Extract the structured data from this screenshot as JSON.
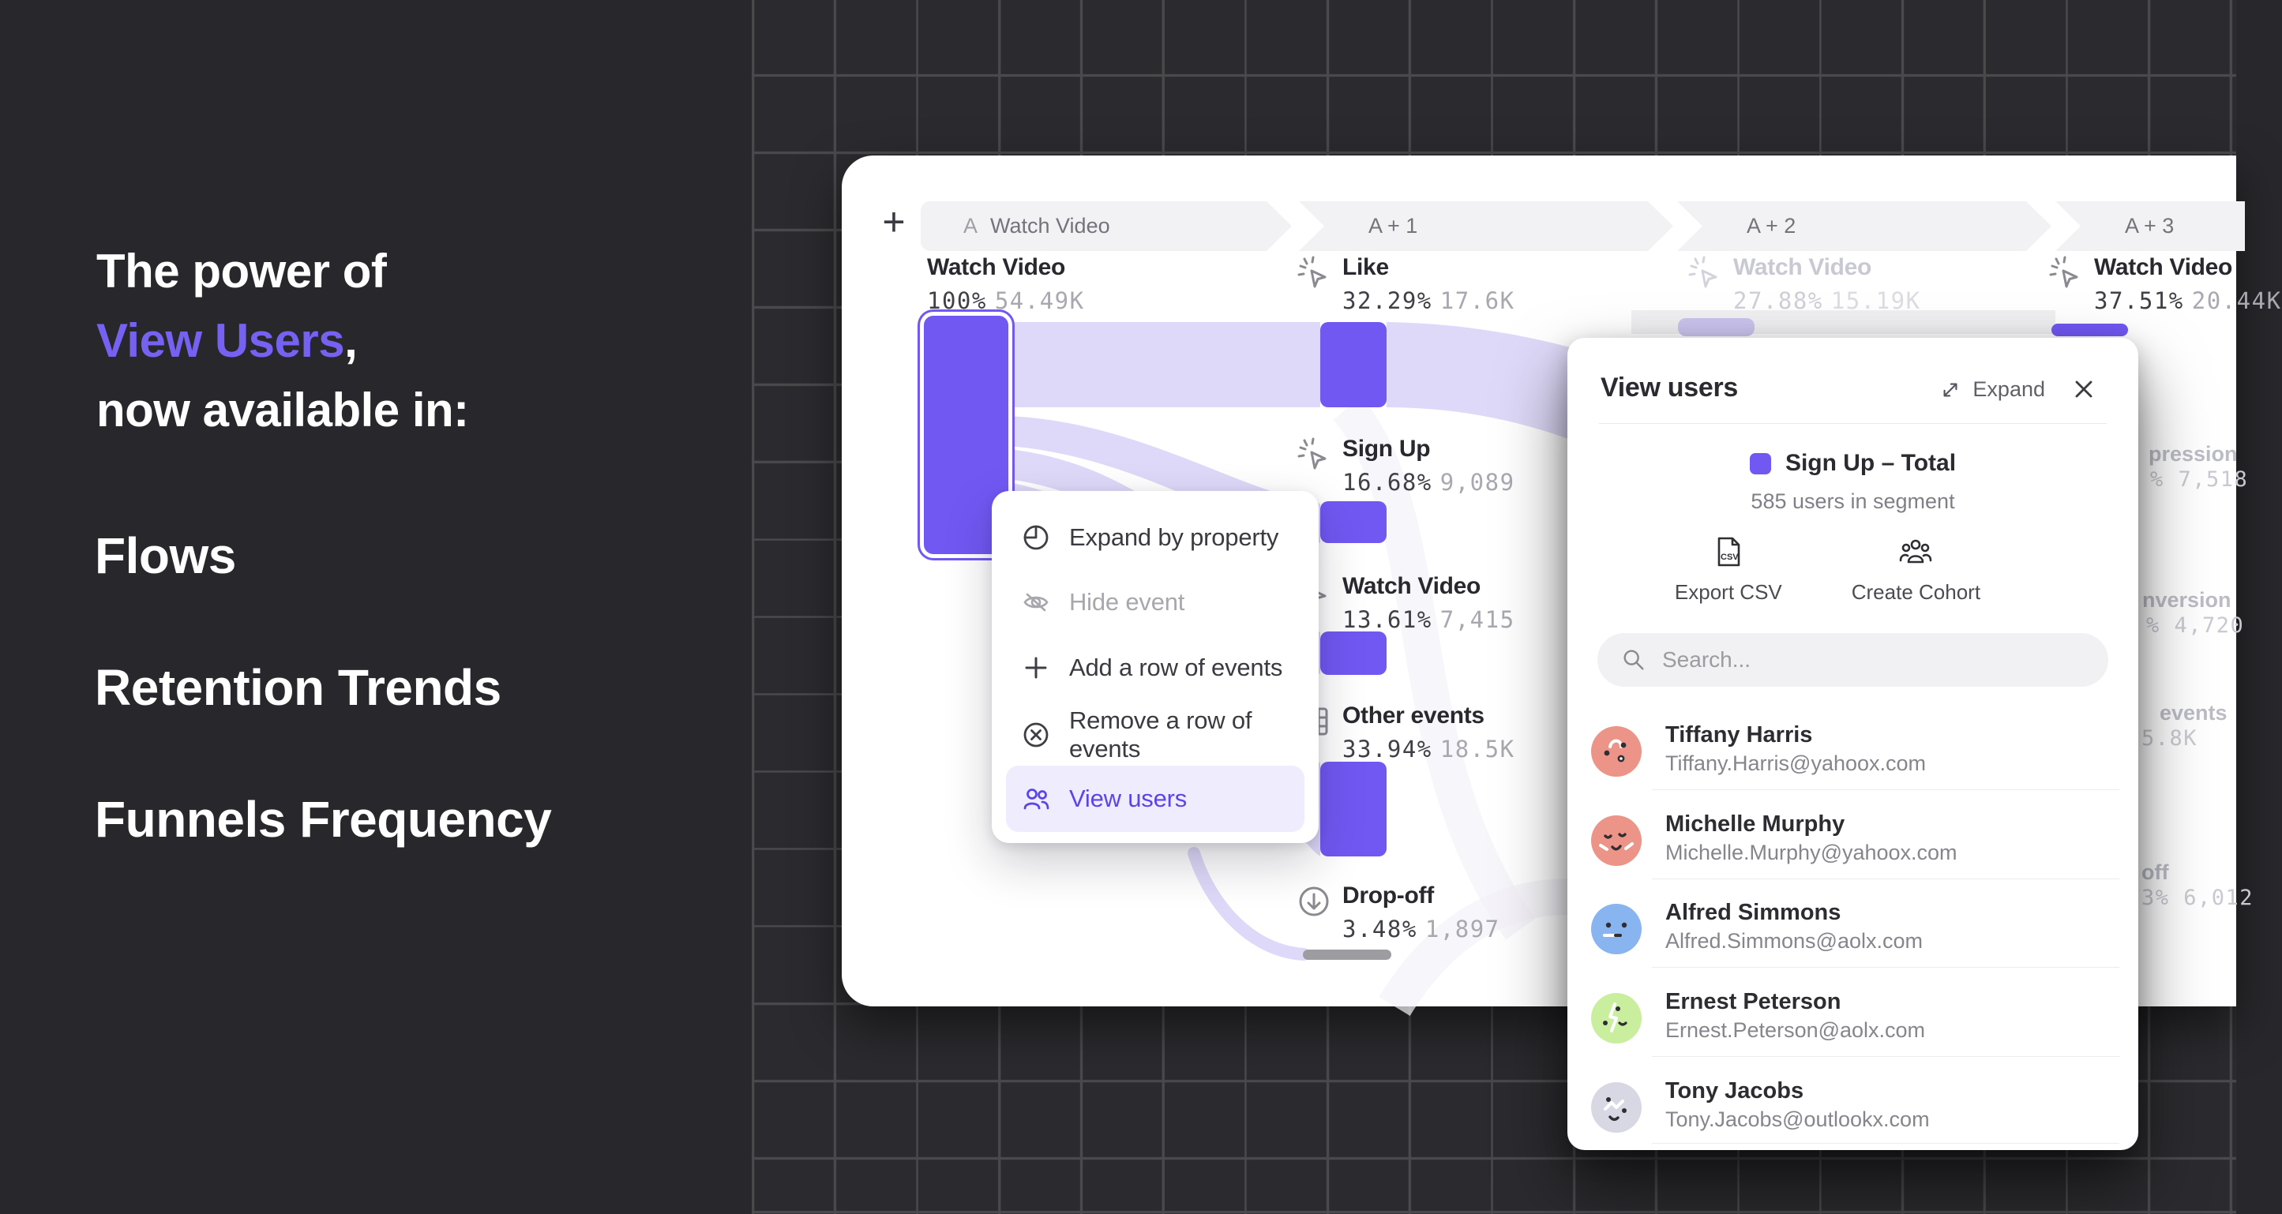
{
  "colors": {
    "bg": "#28282C",
    "grid_line": "#4A4A4D",
    "accent": "#7158F3",
    "accent_text": "#5B45EA",
    "ribbon": "#DED9F8",
    "faded_bar": "#CBC4EE",
    "muted_count": "#A8A8B0"
  },
  "hero": {
    "line1": "The power of",
    "line2": "View Users",
    "line2_comma": ",",
    "line3": "now available in:",
    "items": [
      "Flows",
      "Retention Trends",
      "Funnels Frequency"
    ]
  },
  "toolbar": {
    "add_step_label": "+"
  },
  "pills": [
    {
      "prefix": "A",
      "label": "Watch Video"
    },
    {
      "label": "A + 1"
    },
    {
      "label": "A + 2"
    },
    {
      "label": "A + 3"
    }
  ],
  "chart_data": {
    "type": "sankey-funnel",
    "columns": [
      "A Watch Video",
      "A + 1",
      "A + 2",
      "A + 3"
    ],
    "events": [
      {
        "column": 0,
        "name": "Watch Video",
        "pct": "100%",
        "count": "54.49K"
      },
      {
        "column": 1,
        "name": "Like",
        "pct": "32.29%",
        "count": "17.6K"
      },
      {
        "column": 1,
        "name": "Sign Up",
        "pct": "16.68%",
        "count": "9,089"
      },
      {
        "column": 1,
        "name": "Watch Video",
        "pct": "13.61%",
        "count": "7,415"
      },
      {
        "column": 1,
        "name": "Other events",
        "pct": "33.94%",
        "count": "18.5K"
      },
      {
        "column": 1,
        "name": "Drop-off",
        "pct": "3.48%",
        "count": "1,897"
      },
      {
        "column": 2,
        "name": "Watch Video",
        "pct": "27.88%",
        "count": "15.19K",
        "faded": true
      },
      {
        "column": 3,
        "name": "Watch Video",
        "pct": "37.51%",
        "count": "20.44K"
      }
    ],
    "cutoff_fragments": [
      {
        "text": "pression",
        "kind": "label"
      },
      {
        "text": "% 7,518",
        "kind": "value"
      },
      {
        "text": "nversion",
        "kind": "label"
      },
      {
        "text": "% 4,720",
        "kind": "value"
      },
      {
        "text": "events",
        "kind": "label"
      },
      {
        "text": "5.8K",
        "kind": "value"
      },
      {
        "text": "off",
        "kind": "label"
      },
      {
        "text": "3% 6,012",
        "kind": "value"
      }
    ]
  },
  "context_menu": {
    "items": [
      {
        "label": "Expand by property",
        "icon": "expand-by-property-icon",
        "state": "default"
      },
      {
        "label": "Hide event",
        "icon": "hide-event-icon",
        "state": "disabled"
      },
      {
        "label": "Add a row of events",
        "icon": "plus-icon",
        "state": "default"
      },
      {
        "label": "Remove a row of events",
        "icon": "remove-circle-icon",
        "state": "default"
      },
      {
        "label": "View users",
        "icon": "users-icon",
        "state": "active"
      }
    ]
  },
  "modal": {
    "title": "View users",
    "expand_label": "Expand",
    "legend_label": "Sign Up – Total",
    "legend_sub": "585 users in segment",
    "actions": [
      {
        "label": "Export CSV",
        "icon": "csv-file-icon"
      },
      {
        "label": "Create Cohort",
        "icon": "cohort-icon"
      }
    ],
    "search_placeholder": "Search...",
    "users": [
      {
        "name": "Tiffany Harris",
        "email": "Tiffany.Harris@yahoox.com",
        "avatar_color": "#EC9487"
      },
      {
        "name": "Michelle Murphy",
        "email": "Michelle.Murphy@yahoox.com",
        "avatar_color": "#EC9487"
      },
      {
        "name": "Alfred Simmons",
        "email": "Alfred.Simmons@aolx.com",
        "avatar_color": "#88B5F0"
      },
      {
        "name": "Ernest Peterson",
        "email": "Ernest.Peterson@aolx.com",
        "avatar_color": "#C8EE9E"
      },
      {
        "name": "Tony Jacobs",
        "email": "Tony.Jacobs@outlookx.com",
        "avatar_color": "#D8D8E4"
      }
    ]
  }
}
